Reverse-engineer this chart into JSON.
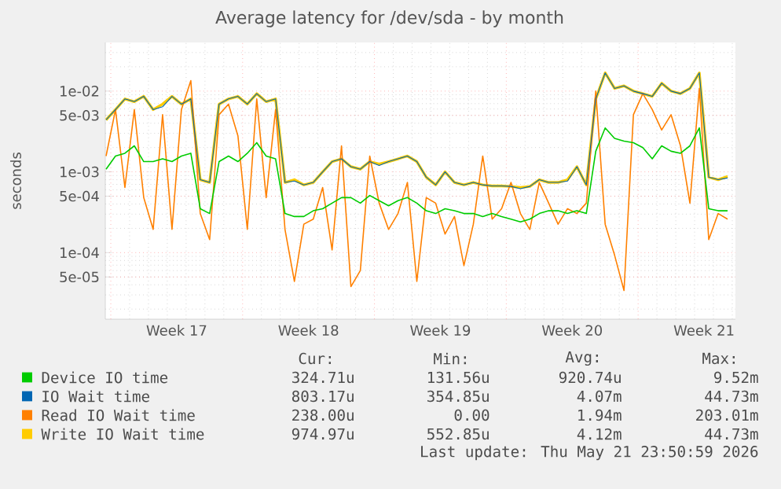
{
  "chart_data": {
    "type": "line",
    "title": "Average latency for /dev/sda - by month",
    "ylabel": "seconds",
    "log": "y",
    "grid": true,
    "legend": "bottom",
    "xlim": [
      "2026-04-18T17:00",
      "2026-05-22T04:00"
    ],
    "ylim": [
      1.5e-05,
      0.04
    ],
    "xticks": [
      {
        "value": "2026-04-22T12:00",
        "label": "Week 17"
      },
      {
        "value": "2026-04-29T12:00",
        "label": "Week 18"
      },
      {
        "value": "2026-05-06T12:00",
        "label": "Week 19"
      },
      {
        "value": "2026-05-13T12:00",
        "label": "Week 20"
      },
      {
        "value": "2026-05-20T12:00",
        "label": "Week 21"
      }
    ],
    "yticks": [
      {
        "value": 0.01,
        "label": "1e-02"
      },
      {
        "value": 0.005,
        "label": "5e-03"
      },
      {
        "value": 0.001,
        "label": "1e-03"
      },
      {
        "value": 0.0005,
        "label": "5e-04"
      },
      {
        "value": 0.0001,
        "label": "1e-04"
      },
      {
        "value": 5e-05,
        "label": "5e-05"
      }
    ],
    "x": [
      "2026-04-18T18:00",
      "2026-04-19T06:00",
      "2026-04-19T18:00",
      "2026-04-20T06:00",
      "2026-04-20T18:00",
      "2026-04-21T06:00",
      "2026-04-21T18:00",
      "2026-04-22T06:00",
      "2026-04-22T18:00",
      "2026-04-23T06:00",
      "2026-04-23T18:00",
      "2026-04-24T06:00",
      "2026-04-24T18:00",
      "2026-04-25T06:00",
      "2026-04-25T18:00",
      "2026-04-26T06:00",
      "2026-04-26T18:00",
      "2026-04-27T06:00",
      "2026-04-27T18:00",
      "2026-04-28T06:00",
      "2026-04-28T18:00",
      "2026-04-29T06:00",
      "2026-04-29T18:00",
      "2026-04-30T06:00",
      "2026-04-30T18:00",
      "2026-05-01T06:00",
      "2026-05-01T18:00",
      "2026-05-02T06:00",
      "2026-05-02T18:00",
      "2026-05-03T06:00",
      "2026-05-03T18:00",
      "2026-05-04T06:00",
      "2026-05-04T18:00",
      "2026-05-05T06:00",
      "2026-05-05T18:00",
      "2026-05-06T06:00",
      "2026-05-06T18:00",
      "2026-05-07T06:00",
      "2026-05-07T18:00",
      "2026-05-08T06:00",
      "2026-05-08T18:00",
      "2026-05-09T06:00",
      "2026-05-09T18:00",
      "2026-05-10T06:00",
      "2026-05-10T18:00",
      "2026-05-11T06:00",
      "2026-05-11T18:00",
      "2026-05-12T06:00",
      "2026-05-12T18:00",
      "2026-05-13T06:00",
      "2026-05-13T18:00",
      "2026-05-14T06:00",
      "2026-05-14T18:00",
      "2026-05-15T06:00",
      "2026-05-15T18:00",
      "2026-05-16T06:00",
      "2026-05-16T18:00",
      "2026-05-17T06:00",
      "2026-05-17T18:00",
      "2026-05-18T06:00",
      "2026-05-18T18:00",
      "2026-05-19T06:00",
      "2026-05-19T18:00",
      "2026-05-20T06:00",
      "2026-05-20T18:00",
      "2026-05-21T06:00",
      "2026-05-21T18:00"
    ],
    "series": [
      {
        "name": "Device IO time",
        "color": "#00cc00",
        "values": [
          0.00108,
          0.00157,
          0.0017,
          0.0021,
          0.00134,
          0.00134,
          0.00145,
          0.00134,
          0.00157,
          0.0017,
          0.00035,
          0.000305,
          0.00134,
          0.00157,
          0.00134,
          0.0017,
          0.0023,
          0.00157,
          0.00145,
          0.000305,
          0.00028,
          0.00028,
          0.00033,
          0.00035,
          0.00041,
          0.00048,
          0.00048,
          0.00041,
          0.00051,
          0.00044,
          0.00038,
          0.00044,
          0.00048,
          0.00041,
          0.00033,
          0.000305,
          0.00035,
          0.00033,
          0.000305,
          0.000305,
          0.00028,
          0.000305,
          0.00028,
          0.00026,
          0.00024,
          0.00026,
          0.000305,
          0.00033,
          0.00033,
          0.000305,
          0.00033,
          0.000305,
          0.0018,
          0.0035,
          0.0026,
          0.0024,
          0.0023,
          0.002,
          0.00145,
          0.0021,
          0.0018,
          0.0017,
          0.0021,
          0.0035,
          0.00035,
          0.00033,
          0.00033
        ]
      },
      {
        "name": "IO Wait time",
        "color": "#0066b3",
        "values": [
          0.0044,
          0.0059,
          0.008,
          0.0074,
          0.0086,
          0.0059,
          0.0064,
          0.0086,
          0.0069,
          0.008,
          0.0008,
          0.00074,
          0.0069,
          0.008,
          0.0086,
          0.0069,
          0.0093,
          0.0074,
          0.008,
          0.00074,
          0.00077,
          0.00069,
          0.00074,
          0.001,
          0.00134,
          0.00145,
          0.00116,
          0.00108,
          0.00134,
          0.0012,
          0.00134,
          0.00145,
          0.00157,
          0.00134,
          0.00086,
          0.00069,
          0.001,
          0.00074,
          0.00069,
          0.00074,
          0.00069,
          0.00067,
          0.00067,
          0.00066,
          0.00062,
          0.00066,
          0.0008,
          0.00074,
          0.00074,
          0.00077,
          0.00116,
          0.00069,
          0.008,
          0.0168,
          0.0108,
          0.0116,
          0.01,
          0.0093,
          0.0086,
          0.0125,
          0.01,
          0.0093,
          0.0108,
          0.0168,
          0.00086,
          0.0008,
          0.00084
        ]
      },
      {
        "name": "Read IO Wait time",
        "color": "#ff8000",
        "values": [
          0.00157,
          0.0059,
          0.00064,
          0.0059,
          0.00048,
          0.000194,
          0.0051,
          0.000194,
          0.0059,
          0.0135,
          0.000305,
          0.000145,
          0.0051,
          0.0069,
          0.0028,
          0.000194,
          0.008,
          0.00048,
          0.0059,
          0.000194,
          4.4e-05,
          0.000225,
          0.00026,
          0.00064,
          0.000108,
          0.0021,
          3.8e-05,
          6e-05,
          0.00157,
          0.00041,
          0.000194,
          0.000305,
          0.00074,
          4.4e-05,
          0.00048,
          0.00041,
          0.00017,
          0.00028,
          6.9e-05,
          0.000225,
          0.00157,
          0.00026,
          0.00035,
          0.00074,
          0.000305,
          0.000194,
          0.00074,
          0.00041,
          0.000225,
          0.00035,
          0.000305,
          0.00041,
          0.01,
          0.000225,
          9.3e-05,
          3.4e-05,
          0.0051,
          0.0093,
          0.0059,
          0.0033,
          0.0051,
          0.0021,
          0.00041,
          0.0108,
          0.000145,
          0.000305,
          0.00026
        ]
      },
      {
        "name": "Write IO Wait time",
        "color": "#ffcc00",
        "values": [
          0.0044,
          0.0059,
          0.008,
          0.0074,
          0.0086,
          0.0059,
          0.0069,
          0.0086,
          0.0069,
          0.008,
          0.0008,
          0.00074,
          0.0069,
          0.008,
          0.0086,
          0.0069,
          0.0093,
          0.0074,
          0.008,
          0.00074,
          0.0008,
          0.00069,
          0.00074,
          0.001,
          0.00134,
          0.00145,
          0.00116,
          0.00108,
          0.00134,
          0.00125,
          0.00134,
          0.00145,
          0.00157,
          0.00134,
          0.00086,
          0.00069,
          0.001,
          0.00074,
          0.00069,
          0.00074,
          0.00069,
          0.00067,
          0.00067,
          0.00066,
          0.00064,
          0.00066,
          0.0008,
          0.00074,
          0.00074,
          0.0008,
          0.00116,
          0.00069,
          0.008,
          0.0168,
          0.0108,
          0.0116,
          0.01,
          0.0093,
          0.0086,
          0.0125,
          0.01,
          0.0093,
          0.0108,
          0.0168,
          0.00086,
          0.0008,
          0.00088
        ]
      }
    ],
    "annotations": [
      "Cur:",
      "Min:",
      "Avg:",
      "Max:",
      "324.71u",
      "131.56u",
      "920.74u",
      "9.52m",
      "803.17u",
      "354.85u",
      "4.07m",
      "44.73m",
      "238.00u",
      "0.00",
      "1.94m",
      "203.01m",
      "974.97u",
      "552.85u",
      "4.12m",
      "44.73m",
      "Last update: Thu May 21 23:50:59 2026"
    ]
  }
}
